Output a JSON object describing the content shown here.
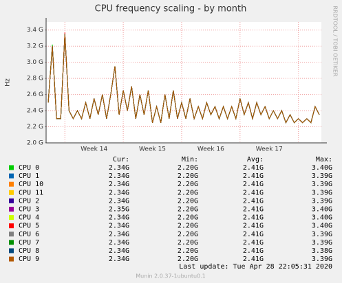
{
  "chart_data": {
    "type": "line",
    "title": "CPU frequency scaling - by month",
    "y_label": "Hz",
    "side_note": "RRDTOOL / TOBI OETIKER",
    "categories": [
      null,
      null,
      null,
      null,
      null,
      null,
      null,
      null,
      null,
      null,
      null,
      "Week 14",
      null,
      null,
      null,
      null,
      null,
      null,
      null,
      null,
      null,
      null,
      null,
      null,
      null,
      "Week 15",
      null,
      null,
      null,
      null,
      null,
      null,
      null,
      null,
      null,
      null,
      null,
      null,
      null,
      "Week 16",
      null,
      null,
      null,
      null,
      null,
      null,
      null,
      null,
      null,
      null,
      null,
      null,
      null,
      "Week 17",
      null,
      null,
      null,
      null,
      null,
      null,
      null,
      null,
      null,
      null,
      null,
      null
    ],
    "ylim": [
      2.0,
      3.5
    ],
    "yticks": [
      {
        "value": 2.0,
        "label": "2.0 G"
      },
      {
        "value": 2.2,
        "label": "2.2 G"
      },
      {
        "value": 2.4,
        "label": "2.4 G"
      },
      {
        "value": 2.6,
        "label": "2.6 G"
      },
      {
        "value": 2.8,
        "label": "2.8 G"
      },
      {
        "value": 3.0,
        "label": "3.0 G"
      },
      {
        "value": 3.2,
        "label": "3.2 G"
      },
      {
        "value": 3.4,
        "label": "3.4 G"
      }
    ],
    "grid": true,
    "legend_headers": [
      "Cur:",
      "Min:",
      "Avg:",
      "Max:"
    ],
    "series": [
      {
        "name": "CPU 0",
        "color": "#00cc00",
        "stats": [
          "2.34G",
          "2.20G",
          "2.41G",
          "3.40G"
        ],
        "values": [
          2.5,
          3.22,
          2.3,
          2.3,
          3.35,
          2.4,
          2.3,
          2.4,
          2.3,
          2.5,
          2.3,
          2.55,
          2.35,
          2.6,
          2.3,
          2.6,
          2.95,
          2.35,
          2.65,
          2.4,
          2.7,
          2.3,
          2.6,
          2.35,
          2.65,
          2.25,
          2.45,
          2.25,
          2.6,
          2.3,
          2.65,
          2.3,
          2.5,
          2.3,
          2.55,
          2.3,
          2.45,
          2.3,
          2.5,
          2.35,
          2.45,
          2.3,
          2.45,
          2.3,
          2.45,
          2.3,
          2.55,
          2.35,
          2.5,
          2.3,
          2.5,
          2.35,
          2.45,
          2.3,
          2.4,
          2.3,
          2.4,
          2.25,
          2.35,
          2.25,
          2.3,
          2.25,
          2.3,
          2.25,
          2.45,
          2.35
        ]
      },
      {
        "name": "CPU 1",
        "color": "#0066b3",
        "stats": [
          "2.34G",
          "2.20G",
          "2.41G",
          "3.39G"
        ],
        "values": [
          2.5,
          3.2,
          2.3,
          2.3,
          3.35,
          2.4,
          2.3,
          2.4,
          2.3,
          2.5,
          2.3,
          2.55,
          2.35,
          2.6,
          2.3,
          2.6,
          2.95,
          2.35,
          2.65,
          2.4,
          2.7,
          2.3,
          2.6,
          2.35,
          2.65,
          2.25,
          2.45,
          2.25,
          2.6,
          2.3,
          2.65,
          2.3,
          2.5,
          2.3,
          2.55,
          2.3,
          2.45,
          2.3,
          2.5,
          2.35,
          2.45,
          2.3,
          2.45,
          2.3,
          2.45,
          2.3,
          2.55,
          2.35,
          2.5,
          2.3,
          2.5,
          2.35,
          2.45,
          2.3,
          2.4,
          2.3,
          2.4,
          2.25,
          2.35,
          2.25,
          2.3,
          2.25,
          2.3,
          2.25,
          2.45,
          2.35
        ]
      },
      {
        "name": "CPU 10",
        "color": "#ff8000",
        "stats": [
          "2.34G",
          "2.20G",
          "2.41G",
          "3.39G"
        ],
        "values": [
          2.5,
          3.2,
          2.3,
          2.3,
          3.35,
          2.4,
          2.3,
          2.4,
          2.3,
          2.5,
          2.3,
          2.55,
          2.35,
          2.6,
          2.3,
          2.6,
          2.95,
          2.35,
          2.65,
          2.4,
          2.7,
          2.3,
          2.6,
          2.35,
          2.65,
          2.25,
          2.45,
          2.25,
          2.6,
          2.3,
          2.65,
          2.3,
          2.5,
          2.3,
          2.55,
          2.3,
          2.45,
          2.3,
          2.5,
          2.35,
          2.45,
          2.3,
          2.45,
          2.3,
          2.45,
          2.3,
          2.55,
          2.35,
          2.5,
          2.3,
          2.5,
          2.35,
          2.45,
          2.3,
          2.4,
          2.3,
          2.4,
          2.25,
          2.35,
          2.25,
          2.3,
          2.25,
          2.3,
          2.25,
          2.45,
          2.35
        ]
      },
      {
        "name": "CPU 11",
        "color": "#ffcc00",
        "stats": [
          "2.34G",
          "2.20G",
          "2.41G",
          "3.39G"
        ],
        "values": [
          2.5,
          3.2,
          2.3,
          2.3,
          3.35,
          2.4,
          2.3,
          2.4,
          2.3,
          2.5,
          2.3,
          2.55,
          2.35,
          2.6,
          2.3,
          2.6,
          2.95,
          2.35,
          2.65,
          2.4,
          2.7,
          2.3,
          2.6,
          2.35,
          2.65,
          2.25,
          2.45,
          2.25,
          2.6,
          2.3,
          2.65,
          2.3,
          2.5,
          2.3,
          2.55,
          2.3,
          2.45,
          2.3,
          2.5,
          2.35,
          2.45,
          2.3,
          2.45,
          2.3,
          2.45,
          2.3,
          2.55,
          2.35,
          2.5,
          2.3,
          2.5,
          2.35,
          2.45,
          2.3,
          2.4,
          2.3,
          2.4,
          2.25,
          2.35,
          2.25,
          2.3,
          2.25,
          2.3,
          2.25,
          2.45,
          2.35
        ]
      },
      {
        "name": "CPU 2",
        "color": "#330099",
        "stats": [
          "2.34G",
          "2.20G",
          "2.41G",
          "3.39G"
        ],
        "values": [
          2.5,
          3.2,
          2.3,
          2.3,
          3.35,
          2.4,
          2.3,
          2.4,
          2.3,
          2.5,
          2.3,
          2.55,
          2.35,
          2.6,
          2.3,
          2.6,
          2.95,
          2.35,
          2.65,
          2.4,
          2.7,
          2.3,
          2.6,
          2.35,
          2.65,
          2.25,
          2.45,
          2.25,
          2.6,
          2.3,
          2.65,
          2.3,
          2.5,
          2.3,
          2.55,
          2.3,
          2.45,
          2.3,
          2.5,
          2.35,
          2.45,
          2.3,
          2.45,
          2.3,
          2.45,
          2.3,
          2.55,
          2.35,
          2.5,
          2.3,
          2.5,
          2.35,
          2.45,
          2.3,
          2.4,
          2.3,
          2.4,
          2.25,
          2.35,
          2.25,
          2.3,
          2.25,
          2.3,
          2.25,
          2.45,
          2.35
        ]
      },
      {
        "name": "CPU 3",
        "color": "#990099",
        "stats": [
          "2.35G",
          "2.20G",
          "2.41G",
          "3.40G"
        ],
        "values": [
          2.5,
          3.2,
          2.3,
          2.3,
          3.35,
          2.4,
          2.3,
          2.4,
          2.3,
          2.5,
          2.3,
          2.55,
          2.35,
          2.6,
          2.3,
          2.6,
          2.95,
          2.35,
          2.65,
          2.4,
          2.7,
          2.3,
          2.6,
          2.35,
          2.65,
          2.25,
          2.45,
          2.25,
          2.6,
          2.3,
          2.65,
          2.3,
          2.5,
          2.3,
          2.55,
          2.3,
          2.45,
          2.3,
          2.5,
          2.35,
          2.45,
          2.3,
          2.45,
          2.3,
          2.45,
          2.3,
          2.55,
          2.35,
          2.5,
          2.3,
          2.5,
          2.35,
          2.45,
          2.3,
          2.4,
          2.3,
          2.4,
          2.25,
          2.35,
          2.25,
          2.3,
          2.25,
          2.3,
          2.25,
          2.45,
          2.35
        ]
      },
      {
        "name": "CPU 4",
        "color": "#ccff00",
        "stats": [
          "2.34G",
          "2.20G",
          "2.41G",
          "3.40G"
        ],
        "values": [
          2.5,
          3.2,
          2.3,
          2.3,
          3.35,
          2.4,
          2.3,
          2.4,
          2.3,
          2.5,
          2.3,
          2.55,
          2.35,
          2.6,
          2.3,
          2.6,
          2.95,
          2.35,
          2.65,
          2.4,
          2.7,
          2.3,
          2.6,
          2.35,
          2.65,
          2.25,
          2.45,
          2.25,
          2.6,
          2.3,
          2.65,
          2.3,
          2.5,
          2.3,
          2.55,
          2.3,
          2.45,
          2.3,
          2.5,
          2.35,
          2.45,
          2.3,
          2.45,
          2.3,
          2.45,
          2.3,
          2.55,
          2.35,
          2.5,
          2.3,
          2.5,
          2.35,
          2.45,
          2.3,
          2.4,
          2.3,
          2.4,
          2.25,
          2.35,
          2.25,
          2.3,
          2.25,
          2.3,
          2.25,
          2.45,
          2.35
        ]
      },
      {
        "name": "CPU 5",
        "color": "#ff0000",
        "stats": [
          "2.34G",
          "2.20G",
          "2.41G",
          "3.40G"
        ],
        "values": [
          2.5,
          3.2,
          2.3,
          2.3,
          3.37,
          2.4,
          2.3,
          2.4,
          2.3,
          2.5,
          2.3,
          2.55,
          2.35,
          2.6,
          2.3,
          2.6,
          2.95,
          2.35,
          2.65,
          2.4,
          2.7,
          2.3,
          2.6,
          2.35,
          2.65,
          2.25,
          2.45,
          2.25,
          2.6,
          2.3,
          2.65,
          2.3,
          2.5,
          2.3,
          2.55,
          2.3,
          2.45,
          2.3,
          2.5,
          2.35,
          2.45,
          2.3,
          2.45,
          2.3,
          2.45,
          2.3,
          2.55,
          2.35,
          2.5,
          2.3,
          2.5,
          2.35,
          2.45,
          2.3,
          2.4,
          2.3,
          2.4,
          2.25,
          2.35,
          2.25,
          2.3,
          2.25,
          2.3,
          2.25,
          2.45,
          2.35
        ]
      },
      {
        "name": "CPU 6",
        "color": "#808080",
        "stats": [
          "2.34G",
          "2.20G",
          "2.41G",
          "3.39G"
        ],
        "values": [
          2.5,
          3.2,
          2.3,
          2.3,
          3.35,
          2.4,
          2.3,
          2.4,
          2.3,
          2.5,
          2.3,
          2.55,
          2.35,
          2.6,
          2.3,
          2.6,
          2.95,
          2.35,
          2.65,
          2.4,
          2.7,
          2.3,
          2.6,
          2.35,
          2.65,
          2.25,
          2.45,
          2.25,
          2.6,
          2.3,
          2.65,
          2.3,
          2.5,
          2.3,
          2.55,
          2.3,
          2.45,
          2.3,
          2.5,
          2.35,
          2.45,
          2.3,
          2.45,
          2.3,
          2.45,
          2.3,
          2.55,
          2.35,
          2.5,
          2.3,
          2.5,
          2.35,
          2.45,
          2.3,
          2.4,
          2.3,
          2.4,
          2.25,
          2.35,
          2.25,
          2.3,
          2.25,
          2.3,
          2.25,
          2.45,
          2.35
        ]
      },
      {
        "name": "CPU 7",
        "color": "#008f00",
        "stats": [
          "2.34G",
          "2.20G",
          "2.41G",
          "3.39G"
        ],
        "values": [
          2.5,
          3.2,
          2.3,
          2.3,
          3.35,
          2.4,
          2.3,
          2.4,
          2.3,
          2.5,
          2.3,
          2.55,
          2.35,
          2.6,
          2.3,
          2.6,
          2.95,
          2.35,
          2.65,
          2.4,
          2.7,
          2.3,
          2.6,
          2.35,
          2.65,
          2.25,
          2.45,
          2.25,
          2.6,
          2.3,
          2.65,
          2.3,
          2.5,
          2.3,
          2.55,
          2.3,
          2.45,
          2.3,
          2.5,
          2.35,
          2.45,
          2.3,
          2.45,
          2.3,
          2.45,
          2.3,
          2.55,
          2.35,
          2.5,
          2.3,
          2.5,
          2.35,
          2.45,
          2.3,
          2.4,
          2.3,
          2.4,
          2.25,
          2.35,
          2.25,
          2.3,
          2.25,
          2.3,
          2.25,
          2.45,
          2.35
        ]
      },
      {
        "name": "CPU 8",
        "color": "#00487d",
        "stats": [
          "2.34G",
          "2.20G",
          "2.41G",
          "3.38G"
        ],
        "values": [
          2.5,
          3.2,
          2.3,
          2.3,
          3.35,
          2.4,
          2.3,
          2.4,
          2.3,
          2.5,
          2.3,
          2.55,
          2.35,
          2.6,
          2.3,
          2.6,
          2.95,
          2.35,
          2.65,
          2.4,
          2.7,
          2.3,
          2.6,
          2.35,
          2.65,
          2.25,
          2.45,
          2.25,
          2.6,
          2.3,
          2.65,
          2.3,
          2.5,
          2.3,
          2.55,
          2.3,
          2.45,
          2.3,
          2.5,
          2.35,
          2.45,
          2.3,
          2.45,
          2.3,
          2.45,
          2.3,
          2.55,
          2.35,
          2.5,
          2.3,
          2.5,
          2.35,
          2.45,
          2.3,
          2.4,
          2.3,
          2.4,
          2.25,
          2.35,
          2.25,
          2.3,
          2.25,
          2.3,
          2.25,
          2.45,
          2.35
        ]
      },
      {
        "name": "CPU 9",
        "color": "#b35a00",
        "stats": [
          "2.34G",
          "2.20G",
          "2.41G",
          "3.39G"
        ],
        "values": [
          2.5,
          3.2,
          2.3,
          2.3,
          3.35,
          2.4,
          2.3,
          2.4,
          2.3,
          2.5,
          2.3,
          2.55,
          2.35,
          2.6,
          2.3,
          2.6,
          2.95,
          2.35,
          2.65,
          2.4,
          2.7,
          2.3,
          2.6,
          2.35,
          2.65,
          2.25,
          2.45,
          2.25,
          2.6,
          2.3,
          2.65,
          2.3,
          2.5,
          2.3,
          2.55,
          2.3,
          2.45,
          2.3,
          2.5,
          2.35,
          2.45,
          2.3,
          2.45,
          2.3,
          2.45,
          2.3,
          2.55,
          2.35,
          2.5,
          2.3,
          2.5,
          2.35,
          2.45,
          2.3,
          2.4,
          2.3,
          2.4,
          2.25,
          2.35,
          2.25,
          2.3,
          2.25,
          2.3,
          2.25,
          2.45,
          2.35
        ]
      }
    ],
    "last_update": "Last update: Tue Apr 28 22:05:31 2020",
    "footer": "Munin 2.0.37-1ubuntu0.1"
  }
}
